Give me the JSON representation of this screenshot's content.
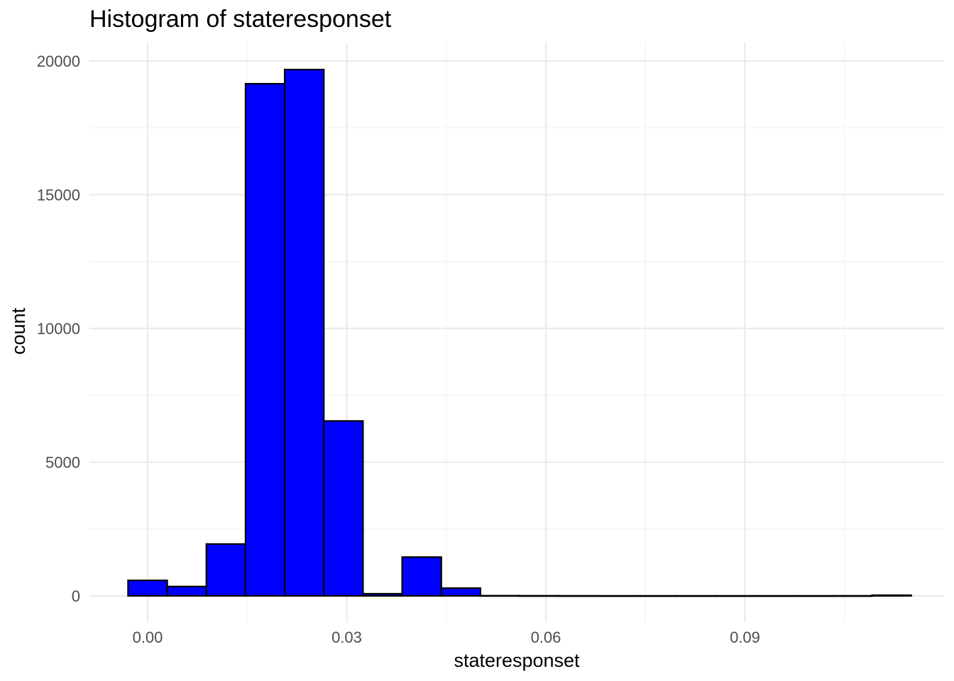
{
  "chart_data": {
    "type": "bar",
    "subtype": "histogram",
    "title": "Histogram of stateresponset",
    "xlabel": "stateresponset",
    "ylabel": "count",
    "xlim": [
      -0.0075,
      0.1185
    ],
    "ylim": [
      -1000,
      20700
    ],
    "x_ticks": [
      0.0,
      0.03,
      0.06,
      0.09
    ],
    "x_tick_labels": [
      "0.00",
      "0.03",
      "0.06",
      "0.09"
    ],
    "x_minor_ticks": [
      0.015,
      0.045,
      0.075,
      0.105
    ],
    "y_ticks": [
      0,
      5000,
      10000,
      15000,
      20000
    ],
    "y_tick_labels": [
      "0",
      "5000",
      "10000",
      "15000",
      "20000"
    ],
    "y_minor_ticks": [
      2500,
      7500,
      12500,
      17500
    ],
    "grid": true,
    "fill_color": "#0000ff",
    "edge_color": "#000000",
    "bins": [
      {
        "x0": -0.00295,
        "x1": 0.00295,
        "count": 580
      },
      {
        "x0": 0.00295,
        "x1": 0.00885,
        "count": 350
      },
      {
        "x0": 0.00885,
        "x1": 0.01475,
        "count": 1940
      },
      {
        "x0": 0.01475,
        "x1": 0.02065,
        "count": 19150
      },
      {
        "x0": 0.02065,
        "x1": 0.02655,
        "count": 19680
      },
      {
        "x0": 0.02655,
        "x1": 0.03245,
        "count": 6540
      },
      {
        "x0": 0.03245,
        "x1": 0.03835,
        "count": 80
      },
      {
        "x0": 0.03835,
        "x1": 0.04425,
        "count": 1450
      },
      {
        "x0": 0.04425,
        "x1": 0.05015,
        "count": 290
      },
      {
        "x0": 0.05015,
        "x1": 0.05605,
        "count": 8
      },
      {
        "x0": 0.05605,
        "x1": 0.06195,
        "count": 5
      },
      {
        "x0": 0.06195,
        "x1": 0.06785,
        "count": 3
      },
      {
        "x0": 0.06785,
        "x1": 0.07375,
        "count": 2
      },
      {
        "x0": 0.07375,
        "x1": 0.07965,
        "count": 2
      },
      {
        "x0": 0.07965,
        "x1": 0.08555,
        "count": 2
      },
      {
        "x0": 0.08555,
        "x1": 0.09145,
        "count": 2
      },
      {
        "x0": 0.09145,
        "x1": 0.09735,
        "count": 2
      },
      {
        "x0": 0.09735,
        "x1": 0.10325,
        "count": 2
      },
      {
        "x0": 0.10325,
        "x1": 0.10915,
        "count": 3
      },
      {
        "x0": 0.10915,
        "x1": 0.11505,
        "count": 25
      }
    ]
  }
}
